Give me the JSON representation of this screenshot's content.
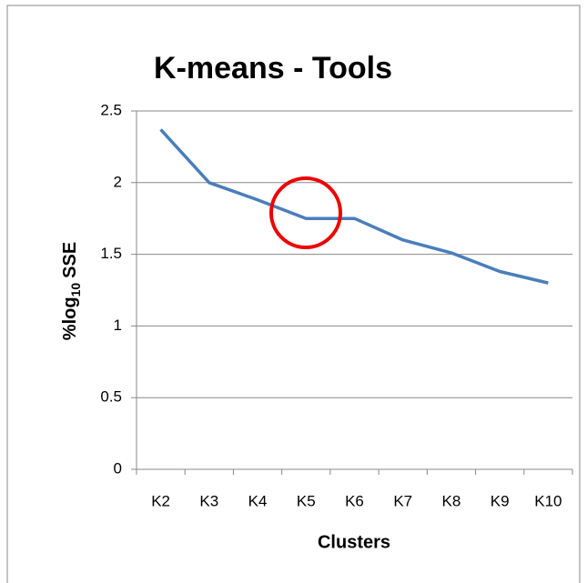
{
  "chart_data": {
    "type": "line",
    "title": "K-means - Tools",
    "xlabel": "Clusters",
    "ylabel": [
      "%log",
      "10",
      "SSE"
    ],
    "categories": [
      "K2",
      "K3",
      "K4",
      "K5",
      "K6",
      "K7",
      "K8",
      "K9",
      "K10"
    ],
    "values": [
      2.37,
      2.0,
      1.88,
      1.75,
      1.75,
      1.6,
      1.51,
      1.38,
      1.3
    ],
    "color": "#4a7ebb",
    "ylim": [
      0,
      2.5
    ],
    "yticks": [
      0,
      0.5,
      1,
      1.5,
      2,
      2.5
    ],
    "grid": true
  }
}
